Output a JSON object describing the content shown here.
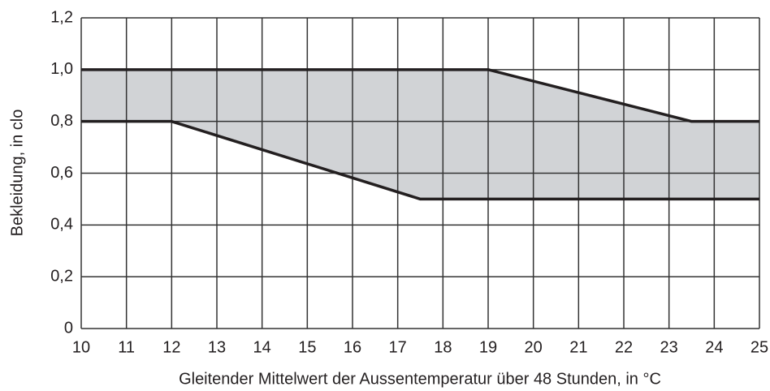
{
  "chart_data": {
    "type": "band",
    "xlabel": "Gleitender Mittelwert der Aussentemperatur über 48 Stunden, in °C",
    "ylabel": "Bekleidung, in clo",
    "xlim": [
      10,
      25
    ],
    "xticks": [
      10,
      11,
      12,
      13,
      14,
      15,
      16,
      17,
      18,
      19,
      20,
      21,
      22,
      23,
      24,
      25
    ],
    "ylim": [
      0,
      1.2
    ],
    "yticks": [
      0,
      {
        "value": 0.2,
        "label": "0,2"
      },
      {
        "value": 0.4,
        "label": "0,4"
      },
      {
        "value": 0.6,
        "label": "0,6"
      },
      {
        "value": 0.8,
        "label": "0,8"
      },
      {
        "value": 1.0,
        "label": "1,0"
      },
      {
        "value": 1.2,
        "label": "1,2"
      }
    ],
    "grid": true,
    "fill_color": "#d1d3d6",
    "series": [
      {
        "color": "#231f20",
        "x": [
          10,
          19,
          23.5,
          25
        ],
        "values": [
          1.0,
          1.0,
          0.8,
          0.8
        ]
      },
      {
        "color": "#231f20",
        "x": [
          10,
          12,
          17.5,
          25
        ],
        "values": [
          0.8,
          0.8,
          0.5,
          0.5
        ]
      }
    ]
  }
}
